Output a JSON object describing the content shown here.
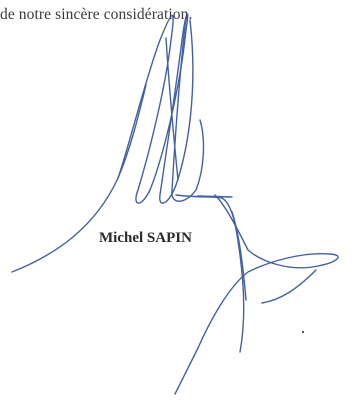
{
  "letter": {
    "closing_text": "de notre sincère considération.",
    "signatory_name": "Michel SAPIN"
  },
  "colors": {
    "ink": "#2f4f9a",
    "text": "#3a3a3a"
  }
}
